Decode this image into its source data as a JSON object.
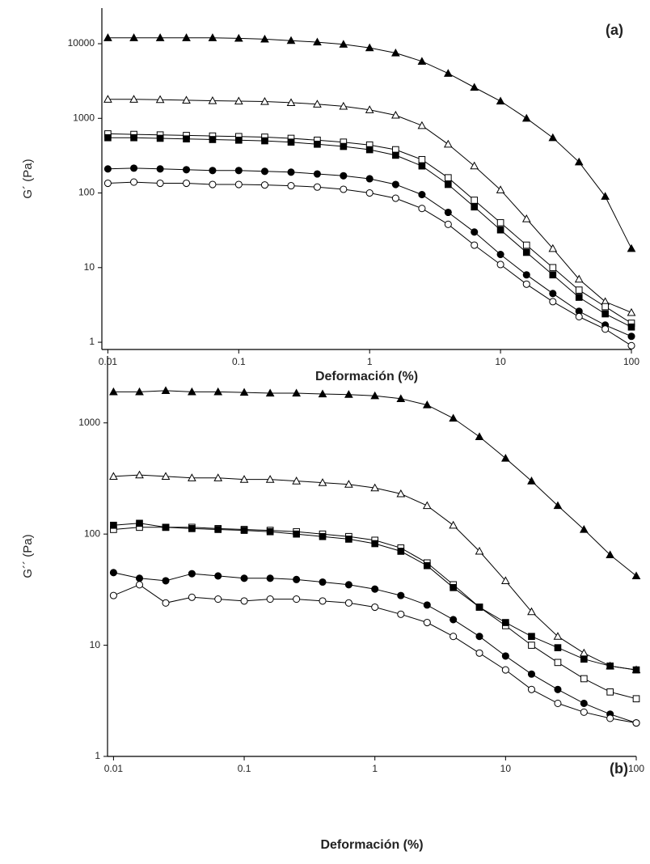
{
  "chart_data": [
    {
      "type": "line",
      "annotation": "(a)",
      "x_label": "Deformación (%)",
      "y_label": "G´ (Pa)",
      "log_x": true,
      "log_y": true,
      "xlim": [
        0.009,
        100
      ],
      "ylim": [
        0.8,
        30000
      ],
      "xticks": [
        0.01,
        0.1,
        1,
        10,
        100
      ],
      "yticks": [
        1,
        10,
        100,
        1000,
        10000
      ],
      "x": [
        0.01,
        0.0158,
        0.0251,
        0.0398,
        0.0631,
        0.1,
        0.158,
        0.251,
        0.398,
        0.631,
        1,
        1.58,
        2.51,
        3.98,
        6.31,
        10,
        15.8,
        25.1,
        39.8,
        63.1,
        100
      ],
      "series": [
        {
          "color": "#000000",
          "marker": "triangle",
          "filled": true,
          "values": [
            12000,
            12000,
            12000,
            12000,
            12000,
            11800,
            11500,
            11000,
            10500,
            9800,
            8800,
            7500,
            5800,
            4000,
            2600,
            1700,
            1000,
            550,
            260,
            90,
            18
          ]
        },
        {
          "color": "#000000",
          "marker": "triangle",
          "filled": false,
          "values": [
            1800,
            1800,
            1780,
            1750,
            1720,
            1700,
            1680,
            1620,
            1550,
            1450,
            1300,
            1100,
            800,
            450,
            230,
            110,
            45,
            18,
            7,
            3.5,
            2.5
          ]
        },
        {
          "color": "#000000",
          "marker": "square",
          "filled": false,
          "values": [
            620,
            610,
            600,
            590,
            580,
            570,
            560,
            540,
            510,
            480,
            440,
            380,
            280,
            160,
            80,
            40,
            20,
            10,
            5,
            3,
            1.8
          ]
        },
        {
          "color": "#000000",
          "marker": "square",
          "filled": true,
          "values": [
            550,
            550,
            540,
            530,
            520,
            510,
            500,
            480,
            450,
            420,
            380,
            320,
            230,
            130,
            65,
            32,
            16,
            8,
            4,
            2.4,
            1.6
          ]
        },
        {
          "color": "#000000",
          "marker": "circle",
          "filled": true,
          "values": [
            210,
            215,
            210,
            205,
            200,
            200,
            195,
            190,
            180,
            170,
            155,
            130,
            95,
            55,
            30,
            15,
            8,
            4.5,
            2.6,
            1.7,
            1.2
          ]
        },
        {
          "color": "#000000",
          "marker": "circle",
          "filled": false,
          "values": [
            135,
            140,
            135,
            135,
            130,
            130,
            128,
            125,
            120,
            112,
            100,
            85,
            62,
            38,
            20,
            11,
            6,
            3.5,
            2.2,
            1.5,
            0.9
          ]
        }
      ]
    },
    {
      "type": "line",
      "annotation": "(b)",
      "x_label": "Deformación (%)",
      "y_label": "G´´ (Pa)",
      "log_x": true,
      "log_y": true,
      "xlim": [
        0.009,
        100
      ],
      "ylim": [
        1,
        4000
      ],
      "xticks": [
        0.01,
        0.1,
        1,
        10,
        100
      ],
      "yticks": [
        1,
        10,
        100,
        1000
      ],
      "x": [
        0.01,
        0.0158,
        0.0251,
        0.0398,
        0.0631,
        0.1,
        0.158,
        0.251,
        0.398,
        0.631,
        1,
        1.58,
        2.51,
        3.98,
        6.31,
        10,
        15.8,
        25.1,
        39.8,
        63.1,
        100
      ],
      "series": [
        {
          "color": "#000000",
          "marker": "triangle",
          "filled": true,
          "values": [
            1900,
            1900,
            1950,
            1900,
            1900,
            1880,
            1850,
            1850,
            1820,
            1800,
            1750,
            1650,
            1450,
            1100,
            750,
            480,
            300,
            180,
            110,
            65,
            42
          ]
        },
        {
          "color": "#000000",
          "marker": "triangle",
          "filled": false,
          "values": [
            330,
            340,
            330,
            320,
            320,
            310,
            310,
            300,
            290,
            280,
            260,
            230,
            180,
            120,
            70,
            38,
            20,
            12,
            8.5,
            6.5,
            6
          ]
        },
        {
          "color": "#000000",
          "marker": "square",
          "filled": false,
          "values": [
            110,
            115,
            115,
            115,
            112,
            110,
            108,
            105,
            100,
            95,
            88,
            75,
            55,
            35,
            22,
            15,
            10,
            7,
            5,
            3.8,
            3.3
          ]
        },
        {
          "color": "#000000",
          "marker": "square",
          "filled": true,
          "values": [
            120,
            125,
            115,
            112,
            110,
            108,
            105,
            100,
            95,
            90,
            82,
            70,
            52,
            33,
            22,
            16,
            12,
            9.5,
            7.5,
            6.5,
            6
          ]
        },
        {
          "color": "#000000",
          "marker": "circle",
          "filled": true,
          "values": [
            45,
            40,
            38,
            44,
            42,
            40,
            40,
            39,
            37,
            35,
            32,
            28,
            23,
            17,
            12,
            8,
            5.5,
            4,
            3,
            2.4,
            2
          ]
        },
        {
          "color": "#000000",
          "marker": "circle",
          "filled": false,
          "values": [
            28,
            35,
            24,
            27,
            26,
            25,
            26,
            26,
            25,
            24,
            22,
            19,
            16,
            12,
            8.5,
            6,
            4,
            3,
            2.5,
            2.2,
            2
          ]
        }
      ]
    }
  ]
}
